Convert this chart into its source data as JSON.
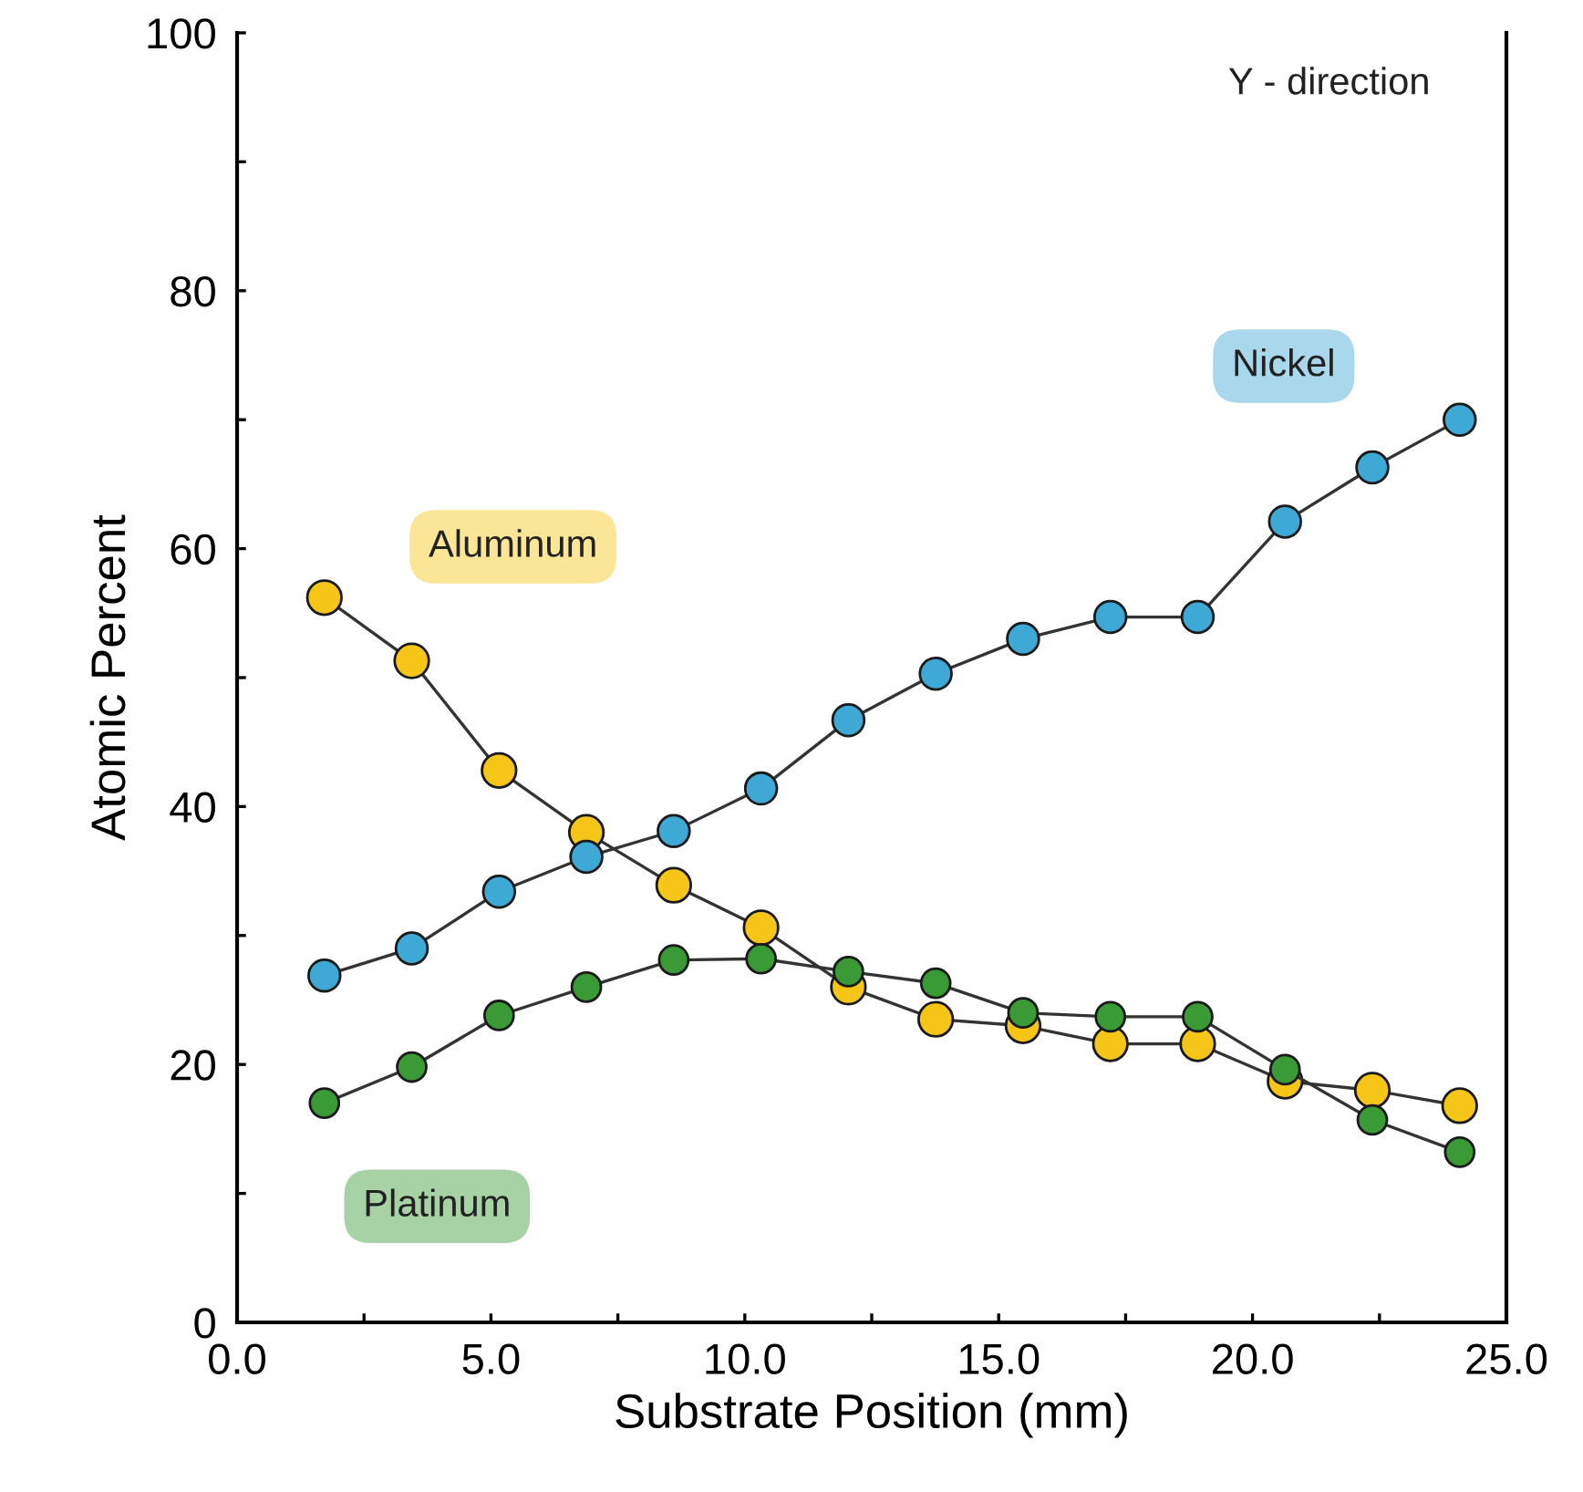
{
  "chart_data": {
    "type": "line",
    "xlabel": "Substrate Position (mm)",
    "ylabel": "Atomic Percent",
    "annotations": [
      "Y - direction"
    ],
    "x": [
      1.72,
      3.44,
      5.16,
      6.88,
      8.6,
      10.32,
      12.04,
      13.76,
      15.48,
      17.2,
      18.92,
      20.64,
      22.36,
      24.08
    ],
    "series": [
      {
        "name": "Aluminum",
        "color": "#f5c518",
        "values": [
          56.2,
          51.3,
          42.8,
          38.0,
          33.9,
          30.6,
          26.0,
          23.5,
          23.0,
          21.6,
          21.6,
          18.7,
          18.0,
          16.8
        ]
      },
      {
        "name": "Nickel",
        "color": "#3fa9d5",
        "values": [
          26.9,
          29.0,
          33.4,
          36.1,
          38.1,
          41.4,
          46.7,
          50.3,
          53.0,
          54.7,
          54.7,
          62.1,
          66.3,
          70.0
        ]
      },
      {
        "name": "Platinum",
        "color": "#3a9a36",
        "values": [
          17.0,
          19.8,
          23.8,
          26.0,
          28.1,
          28.2,
          27.2,
          26.3,
          24.0,
          23.7,
          23.7,
          19.6,
          15.7,
          13.2
        ]
      }
    ],
    "xlim": [
      0,
      25
    ],
    "ylim": [
      0,
      100
    ],
    "xticks": [
      {
        "value": 0,
        "label": "0.0"
      },
      {
        "value": 2.5,
        "label": null
      },
      {
        "value": 5,
        "label": "5.0"
      },
      {
        "value": 7.5,
        "label": null
      },
      {
        "value": 10,
        "label": "10.0"
      },
      {
        "value": 12.5,
        "label": null
      },
      {
        "value": 15,
        "label": "15.0"
      },
      {
        "value": 17.5,
        "label": null
      },
      {
        "value": 20,
        "label": "20.0"
      },
      {
        "value": 22.5,
        "label": null
      },
      {
        "value": 25,
        "label": "25.0"
      }
    ],
    "yticks": [
      0,
      {
        "value": 10,
        "label": null
      },
      20,
      {
        "value": 30,
        "label": null
      },
      40,
      {
        "value": 50,
        "label": null
      },
      60,
      {
        "value": 70,
        "label": null
      },
      80,
      {
        "value": 90,
        "label": null
      },
      100
    ],
    "marker": "circle",
    "line_style": "solid",
    "grid": false,
    "legend": false
  }
}
